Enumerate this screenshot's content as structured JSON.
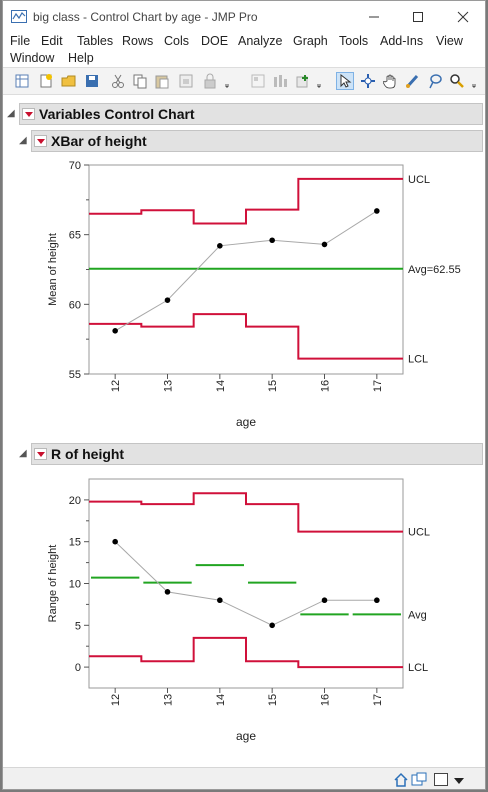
{
  "window": {
    "title": "big class - Control Chart by age - JMP Pro"
  },
  "menus": [
    "File",
    "Edit",
    "Tables",
    "Rows",
    "Cols",
    "DOE",
    "Analyze",
    "Graph",
    "Tools",
    "Add-Ins",
    "View",
    "Window",
    "Help"
  ],
  "report": {
    "title": "Variables Control Chart",
    "xbar_section_title": "XBar of height",
    "r_section_title": "R of height"
  },
  "chart_data": [
    {
      "type": "line",
      "title": "XBar of height",
      "xlabel": "age",
      "ylabel": "Mean of height",
      "categories": [
        "12",
        "13",
        "14",
        "15",
        "16",
        "17"
      ],
      "values": [
        58.1,
        60.3,
        64.2,
        64.6,
        64.3,
        66.7
      ],
      "ylim": [
        55,
        70
      ],
      "yticks": [
        55,
        60,
        65,
        70
      ],
      "limits": {
        "UCL": [
          66.5,
          66.75,
          65.8,
          66.8,
          69.0,
          69.0
        ],
        "LCL": [
          58.6,
          58.4,
          59.3,
          58.4,
          56.1,
          56.1
        ],
        "Avg": 62.55
      },
      "limit_labels": {
        "ucl": "UCL",
        "avg": "Avg=62.55",
        "lcl": "LCL"
      },
      "colors": {
        "limits": "#d0103a",
        "avg": "#21a521",
        "points": "#000000",
        "connect": "#a8a8a8"
      }
    },
    {
      "type": "line",
      "title": "R of height",
      "xlabel": "age",
      "ylabel": "Range of height",
      "categories": [
        "12",
        "13",
        "14",
        "15",
        "16",
        "17"
      ],
      "values": [
        15,
        9,
        8,
        5,
        8,
        8
      ],
      "ylim": [
        -2.5,
        22.5
      ],
      "yticks": [
        0,
        5,
        10,
        15,
        20
      ],
      "limits": {
        "UCL": [
          19.8,
          19.5,
          20.8,
          19.5,
          16.2,
          16.2
        ],
        "LCL": [
          1.3,
          0.7,
          3.5,
          0.7,
          0.0,
          0.0
        ],
        "Avg": [
          10.7,
          10.1,
          12.2,
          10.1,
          6.3,
          6.3
        ]
      },
      "limit_labels": {
        "ucl": "UCL",
        "avg": "Avg",
        "lcl": "LCL"
      },
      "colors": {
        "limits": "#d0103a",
        "avg": "#21a521",
        "points": "#000000",
        "connect": "#a8a8a8"
      }
    }
  ]
}
